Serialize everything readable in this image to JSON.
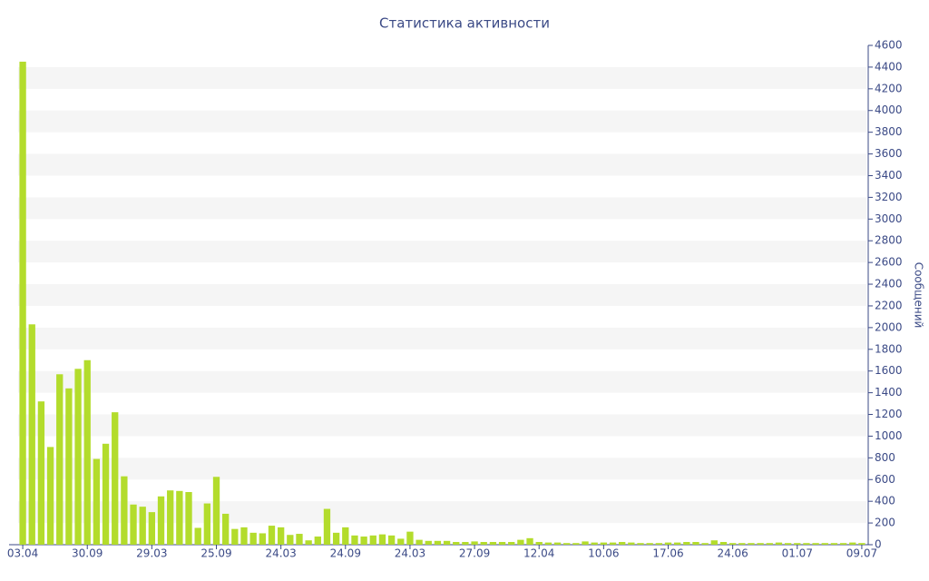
{
  "chart_data": {
    "type": "bar",
    "title": "Статистика активности",
    "y_label": "Сообщений",
    "categories": [
      "03.04",
      null,
      null,
      null,
      null,
      null,
      null,
      "30.09",
      null,
      null,
      null,
      null,
      null,
      null,
      "29.03",
      null,
      null,
      null,
      null,
      null,
      null,
      "25.09",
      null,
      null,
      null,
      null,
      null,
      null,
      "24.03",
      null,
      null,
      null,
      null,
      null,
      null,
      "24.09",
      null,
      null,
      null,
      null,
      null,
      null,
      "24.03",
      null,
      null,
      null,
      null,
      null,
      null,
      "27.09",
      null,
      null,
      null,
      null,
      null,
      null,
      "12.04",
      null,
      null,
      null,
      null,
      null,
      null,
      "10.06",
      null,
      null,
      null,
      null,
      null,
      null,
      "17.06",
      null,
      null,
      null,
      null,
      null,
      null,
      "24.06",
      null,
      null,
      null,
      null,
      null,
      null,
      "01.07",
      null,
      null,
      null,
      null,
      null,
      null,
      "09.07"
    ],
    "values": [
      4450,
      2030,
      1320,
      900,
      1570,
      1440,
      1620,
      1700,
      790,
      930,
      1220,
      630,
      370,
      350,
      300,
      445,
      500,
      495,
      485,
      155,
      380,
      625,
      285,
      145,
      160,
      110,
      105,
      175,
      160,
      90,
      100,
      40,
      75,
      330,
      110,
      160,
      85,
      75,
      85,
      95,
      85,
      55,
      120,
      45,
      35,
      35,
      35,
      25,
      25,
      30,
      25,
      25,
      25,
      25,
      45,
      60,
      25,
      20,
      20,
      15,
      15,
      30,
      20,
      20,
      20,
      25,
      20,
      15,
      15,
      15,
      20,
      20,
      25,
      25,
      15,
      40,
      25,
      15,
      15,
      15,
      15,
      15,
      20,
      15,
      15,
      15,
      15,
      15,
      15,
      15,
      20,
      15
    ],
    "color": "#b3dc2c",
    "ylim": [
      0,
      4600
    ],
    "yticks": [
      0,
      200,
      400,
      600,
      800,
      1000,
      1200,
      1400,
      1600,
      1800,
      2000,
      2200,
      2400,
      2600,
      2800,
      3000,
      3200,
      3400,
      3600,
      3800,
      4000,
      4200,
      4400,
      4600
    ],
    "grid": true
  }
}
